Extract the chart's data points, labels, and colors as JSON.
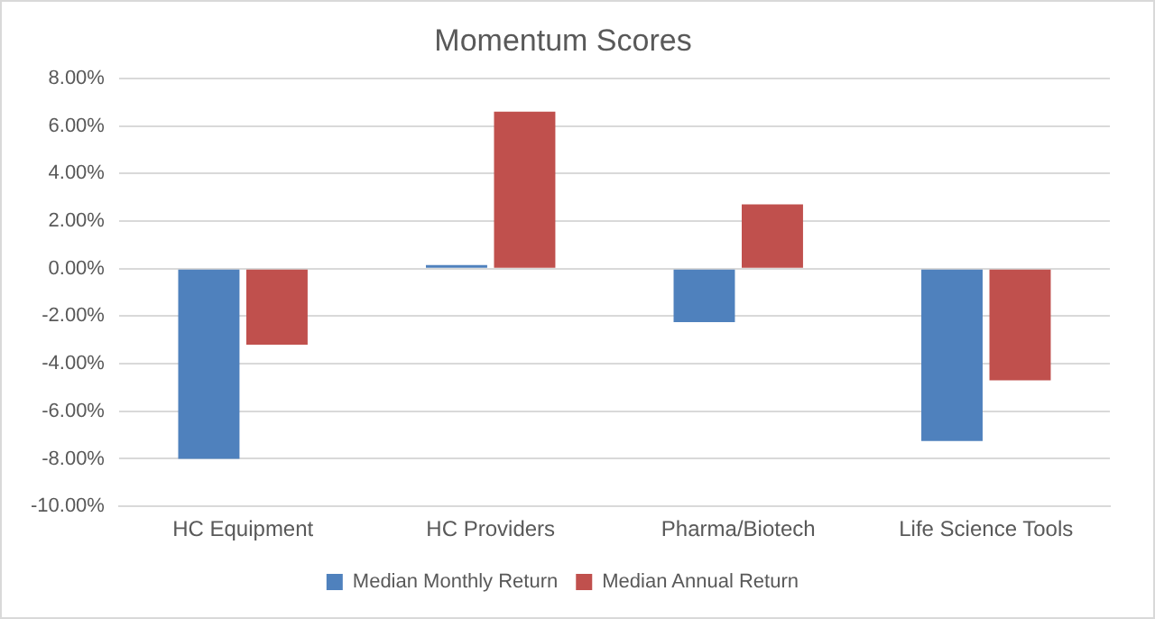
{
  "chart_data": {
    "type": "bar",
    "title": "Momentum Scores",
    "categories": [
      "HC Equipment",
      "HC Providers",
      "Pharma/Biotech",
      "Life Science Tools"
    ],
    "series": [
      {
        "name": "Median Monthly Return",
        "color": "#4f81bd",
        "values": [
          -8.0,
          0.15,
          -2.25,
          -7.25
        ]
      },
      {
        "name": "Median Annual Return",
        "color": "#c0504d",
        "values": [
          -3.2,
          6.6,
          2.7,
          -4.7
        ]
      }
    ],
    "ylim": [
      -10,
      8
    ],
    "yticks": [
      {
        "value": -10,
        "label": "-10.00%"
      },
      {
        "value": -8,
        "label": "-8.00%"
      },
      {
        "value": -6,
        "label": "-6.00%"
      },
      {
        "value": -4,
        "label": "-4.00%"
      },
      {
        "value": -2,
        "label": "-2.00%"
      },
      {
        "value": 0,
        "label": "0.00%"
      },
      {
        "value": 2,
        "label": "2.00%"
      },
      {
        "value": 4,
        "label": "4.00%"
      },
      {
        "value": 6,
        "label": "6.00%"
      },
      {
        "value": 8,
        "label": "8.00%"
      }
    ],
    "grid": "y",
    "legend": "bottom"
  }
}
